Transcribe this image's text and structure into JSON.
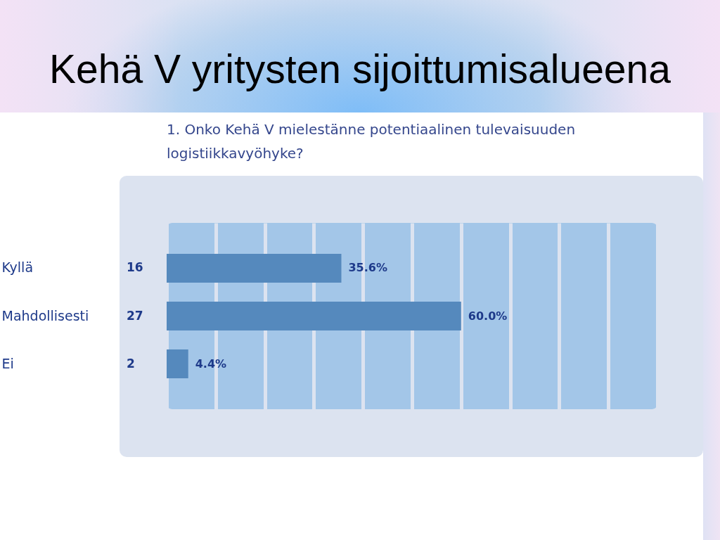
{
  "chart_data": {
    "type": "bar",
    "orientation": "horizontal",
    "title": "Kehä V yritysten sijoittumisalueena",
    "subtitle": "1. Onko Kehä V mielestänne potentiaalinen tulevaisuuden logistiikkavyöhyke?",
    "categories": [
      "Kyllä",
      "Mahdollisesti",
      "Ei"
    ],
    "values": [
      35.6,
      60.0,
      4.4
    ],
    "value_labels": [
      "35.6%",
      "60.0%",
      "4.4%"
    ],
    "color": "#5589bd",
    "xlim": [
      0,
      100
    ],
    "xticks": [
      {
        "value": 0,
        "label": null
      },
      {
        "value": 10,
        "label": null
      },
      {
        "value": 20,
        "label": null
      },
      {
        "value": 30,
        "label": null
      },
      {
        "value": 40,
        "label": null
      },
      {
        "value": 50,
        "label": null
      },
      {
        "value": 60,
        "label": null
      },
      {
        "value": 70,
        "label": null
      },
      {
        "value": 80,
        "label": null
      },
      {
        "value": 90,
        "label": null
      },
      {
        "value": 100,
        "label": null
      }
    ],
    "grid": "x",
    "tick_labels": "y",
    "annotations": [
      "16",
      "27",
      "2"
    ]
  }
}
